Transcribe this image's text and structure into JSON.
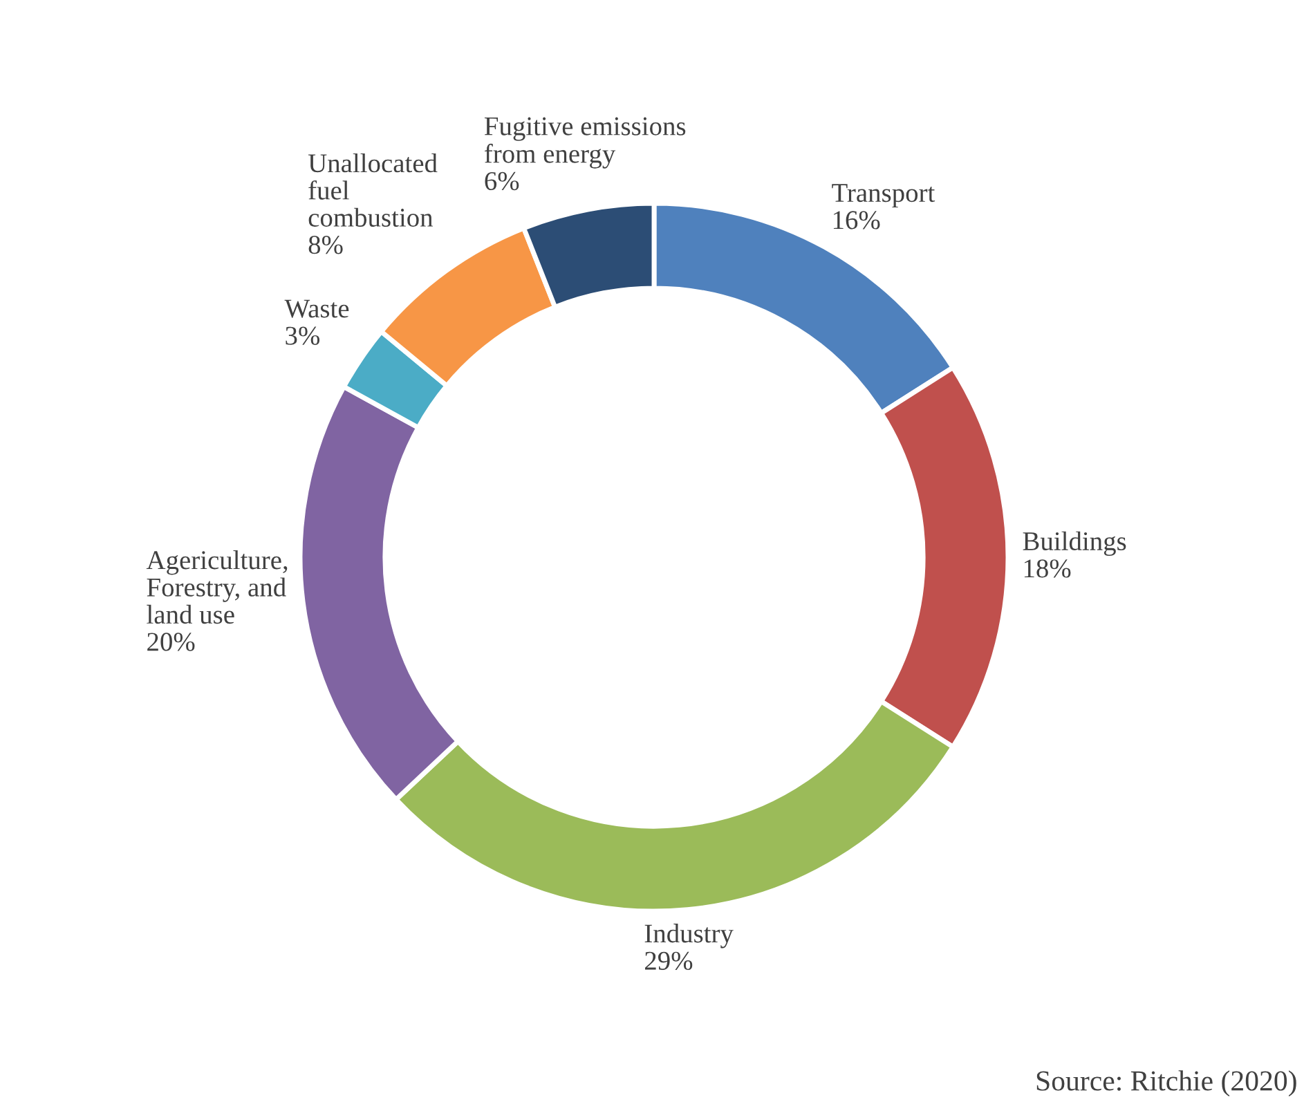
{
  "chart_data": {
    "type": "donut",
    "categories": [
      "Transport",
      "Buildings",
      "Industry",
      "Agericulture,\nForestry, and\nland use",
      "Waste",
      "Unallocated\nfuel\ncombustion",
      "Fugitive emissions\nfrom energy"
    ],
    "values": [
      16,
      18,
      29,
      20,
      3,
      8,
      6
    ],
    "value_labels": [
      "16%",
      "18%",
      "29%",
      "20%",
      "3%",
      "8%",
      "6%"
    ],
    "colors": [
      "#4f81bd",
      "#c0504d",
      "#9bbb59",
      "#8064a2",
      "#4bacc6",
      "#f79646",
      "#2c4d75"
    ],
    "annotations": [
      "Source: Ritchie (2020)"
    ],
    "legend": false
  }
}
